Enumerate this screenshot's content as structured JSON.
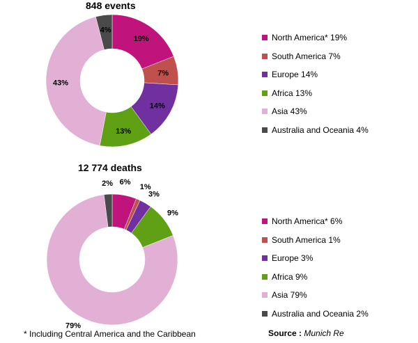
{
  "colors": {
    "north_america": "#c0147c",
    "south_america": "#c0504d",
    "europe": "#7030a0",
    "africa": "#5fa015",
    "asia": "#e2b0d4",
    "australia_oceania": "#4a4a4a"
  },
  "chart_data": [
    {
      "type": "donut",
      "title": "848 events",
      "legend_position": "right",
      "slices": [
        {
          "key": "north_america",
          "legend": "North America* 19%",
          "label": "19%",
          "value": 19
        },
        {
          "key": "south_america",
          "legend": "South America 7%",
          "label": "7%",
          "value": 7
        },
        {
          "key": "europe",
          "legend": "Europe 14%",
          "label": "14%",
          "value": 14
        },
        {
          "key": "africa",
          "legend": "Africa 13%",
          "label": "13%",
          "value": 13
        },
        {
          "key": "asia",
          "legend": "Asia 43%",
          "label": "43%",
          "value": 43
        },
        {
          "key": "australia_oceania",
          "legend": "Australia and Oceania 4%",
          "label": "4%",
          "value": 4
        }
      ]
    },
    {
      "type": "donut",
      "title": "12 774 deaths",
      "legend_position": "right",
      "slices": [
        {
          "key": "north_america",
          "legend": "North America* 6%",
          "label": "6%",
          "value": 6
        },
        {
          "key": "south_america",
          "legend": "South America 1%",
          "label": "1%",
          "value": 1
        },
        {
          "key": "europe",
          "legend": "Europe 3%",
          "label": "3%",
          "value": 3
        },
        {
          "key": "africa",
          "legend": "Africa 9%",
          "label": "9%",
          "value": 9
        },
        {
          "key": "asia",
          "legend": "Asia 79%",
          "label": "79%",
          "value": 79
        },
        {
          "key": "australia_oceania",
          "legend": "Australia and Oceania 2%",
          "label": "2%",
          "value": 2
        }
      ]
    }
  ],
  "footnote": "* Including Central America and the Caribbean",
  "source": {
    "label": "Source :",
    "name": "Munich Re"
  }
}
